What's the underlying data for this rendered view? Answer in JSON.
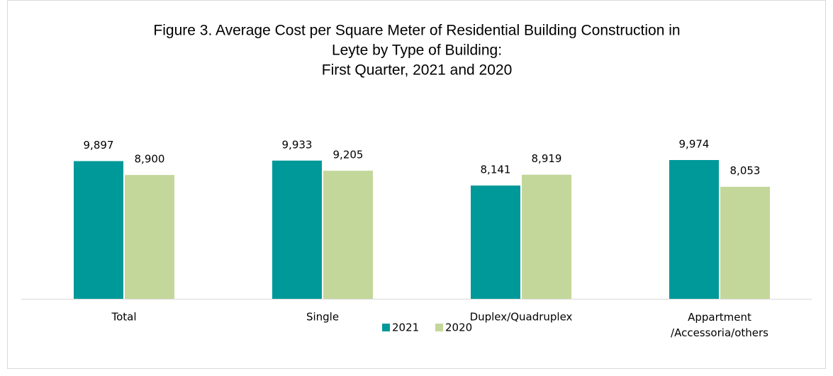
{
  "chart_data": {
    "type": "bar",
    "title": [
      "Figure 3. Average Cost per Square Meter of Residential Building Construction in",
      "Leyte by Type of Building:",
      "First Quarter, 2021 and 2020"
    ],
    "categories": [
      "Total",
      "Single",
      "Duplex/Quadruplex",
      "Appartment\n/Accessoria/others"
    ],
    "series": [
      {
        "name": "2021",
        "color": "#009999",
        "values": [
          9897,
          9933,
          8141,
          9974
        ],
        "value_labels": [
          "9,897",
          "9,933",
          "8,141",
          "9,974"
        ]
      },
      {
        "name": "2020",
        "color": "#c4d79b",
        "values": [
          8900,
          9205,
          8919,
          8053
        ],
        "value_labels": [
          "8,900",
          "9,205",
          "8,919",
          "8,053"
        ]
      }
    ],
    "legend": "bottom"
  }
}
